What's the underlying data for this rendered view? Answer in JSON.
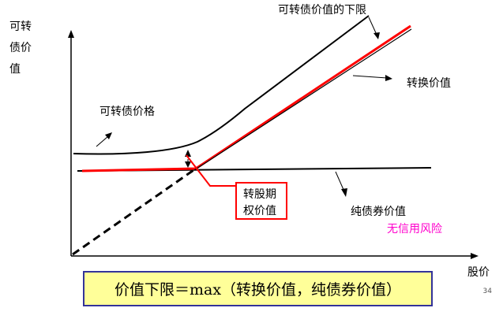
{
  "y_axis_label_lines": [
    "可转",
    "债价",
    "值"
  ],
  "x_axis_label": "股价",
  "labels": {
    "upper_bound": "可转债价值的下限",
    "conversion_value": "转换价值",
    "cb_price": "可转债价格",
    "option_line1": "转股期",
    "option_line2": "权价值",
    "bond_value": "纯债券价值",
    "no_credit_risk": "无信用风险"
  },
  "formula": "价值下限＝max（转换价值，纯债券价值）",
  "page_number": "34",
  "colors": {
    "curve": "#000000",
    "floor": "#ff0000",
    "option_box": "#ff0000",
    "no_credit_risk_text": "#ff00cc",
    "formula_bg": "#ffff99",
    "formula_border": "#333399"
  }
}
